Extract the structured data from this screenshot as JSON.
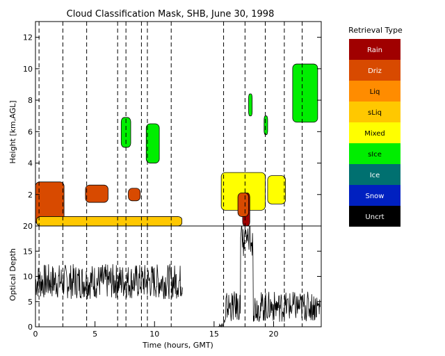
{
  "chart_data": [
    {
      "type": "heatmap",
      "title": "Cloud Classification Mask, SHB, June 30, 1998",
      "ylabel": "Height [km,AGL]",
      "xlim": [
        0,
        24
      ],
      "ylim": [
        0,
        13
      ],
      "yticks": [
        2,
        4,
        6,
        8,
        10,
        12
      ],
      "legend": {
        "title": "Retrieval Type",
        "placement": "right",
        "items": [
          {
            "label": "Rain",
            "color": "#a00000"
          },
          {
            "label": "Driz",
            "color": "#d84a00"
          },
          {
            "label": "Liq",
            "color": "#ff8c00"
          },
          {
            "label": "sLiq",
            "color": "#ffc800"
          },
          {
            "label": "Mixed",
            "color": "#ffff00"
          },
          {
            "label": "sIce",
            "color": "#00ee00"
          },
          {
            "label": "Ice",
            "color": "#007070"
          },
          {
            "label": "Snow",
            "color": "#0020c0"
          },
          {
            "label": "Uncrt",
            "color": "#000000"
          }
        ]
      },
      "regions": [
        {
          "type": "Driz",
          "t": [
            0.0,
            2.4
          ],
          "h": [
            0.1,
            2.8
          ]
        },
        {
          "type": "sLiq",
          "t": [
            0.1,
            12.3
          ],
          "h": [
            0.0,
            0.6
          ]
        },
        {
          "type": "Driz",
          "t": [
            4.2,
            6.1
          ],
          "h": [
            1.5,
            2.6
          ]
        },
        {
          "type": "Driz",
          "t": [
            7.8,
            8.8
          ],
          "h": [
            1.6,
            2.4
          ]
        },
        {
          "type": "sIce",
          "t": [
            7.2,
            8.0
          ],
          "h": [
            5.0,
            6.9
          ]
        },
        {
          "type": "sIce",
          "t": [
            9.3,
            10.4
          ],
          "h": [
            4.0,
            6.5
          ]
        },
        {
          "type": "sIce",
          "t": [
            17.9,
            18.2
          ],
          "h": [
            7.0,
            8.4
          ]
        },
        {
          "type": "sIce",
          "t": [
            19.2,
            19.5
          ],
          "h": [
            5.8,
            7.0
          ]
        },
        {
          "type": "sIce",
          "t": [
            21.6,
            23.7
          ],
          "h": [
            6.6,
            10.3
          ]
        },
        {
          "type": "Mixed",
          "t": [
            15.6,
            19.3
          ],
          "h": [
            1.0,
            3.4
          ]
        },
        {
          "type": "Rain",
          "t": [
            17.4,
            18.0
          ],
          "h": [
            0.0,
            2.1
          ]
        },
        {
          "type": "Driz",
          "t": [
            17.0,
            17.9
          ],
          "h": [
            0.6,
            2.1
          ]
        },
        {
          "type": "Mixed",
          "t": [
            19.5,
            21.0
          ],
          "h": [
            1.4,
            3.2
          ]
        }
      ],
      "dashed_times": [
        0.3,
        2.3,
        4.3,
        6.9,
        7.6,
        8.9,
        9.4,
        11.4,
        15.8,
        17.6,
        19.3,
        20.9,
        22.4
      ]
    },
    {
      "type": "line",
      "ylabel": "Optical Depth",
      "xlabel": "Time (hours, GMT)",
      "xlim": [
        0,
        24
      ],
      "ylim": [
        0,
        20
      ],
      "xticks": [
        0,
        5,
        10,
        15,
        20
      ],
      "yticks": [
        0,
        5,
        10,
        15,
        20
      ],
      "segments": [
        {
          "t_start": 0.0,
          "t_end": 12.35,
          "mean": 9.0,
          "amp": 3.5
        },
        {
          "t_start": 15.3,
          "t_end": 23.9,
          "mean": 4.0,
          "amp": 3.0
        }
      ]
    }
  ]
}
